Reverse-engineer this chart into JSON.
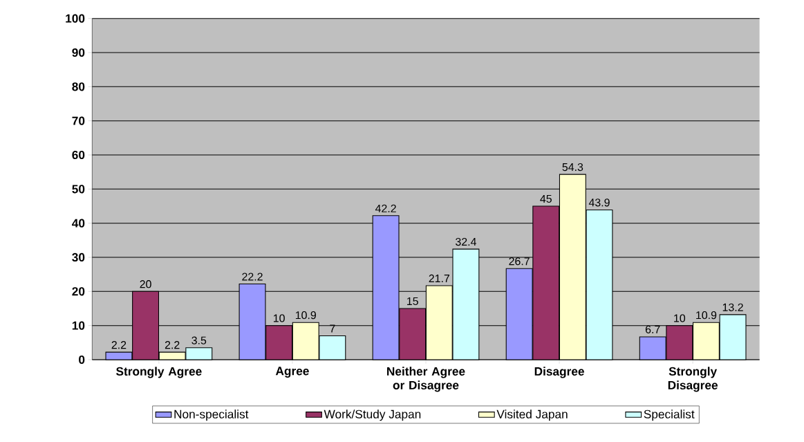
{
  "chart_data": {
    "type": "bar",
    "categories": [
      "Strongly Agree",
      "Agree",
      "Neither Agree or Disagree",
      "Disagree",
      "Strongly Disagree"
    ],
    "series": [
      {
        "name": "Non-specialist",
        "color": "#9999ff",
        "values": [
          2.2,
          22.2,
          42.2,
          26.7,
          6.7
        ]
      },
      {
        "name": "Work/Study Japan",
        "color": "#993366",
        "values": [
          20,
          10,
          15,
          45,
          10
        ]
      },
      {
        "name": "Visited Japan",
        "color": "#ffffcc",
        "values": [
          2.2,
          10.9,
          21.7,
          54.3,
          10.9
        ]
      },
      {
        "name": "Specialist",
        "color": "#ccffff",
        "values": [
          3.5,
          7,
          32.4,
          43.9,
          13.2
        ]
      }
    ],
    "ylim": [
      0,
      100
    ],
    "yticks": [
      0,
      10,
      20,
      30,
      40,
      50,
      60,
      70,
      80,
      90,
      100
    ],
    "grid": "y",
    "legend": "bottom",
    "data_labels": true
  }
}
